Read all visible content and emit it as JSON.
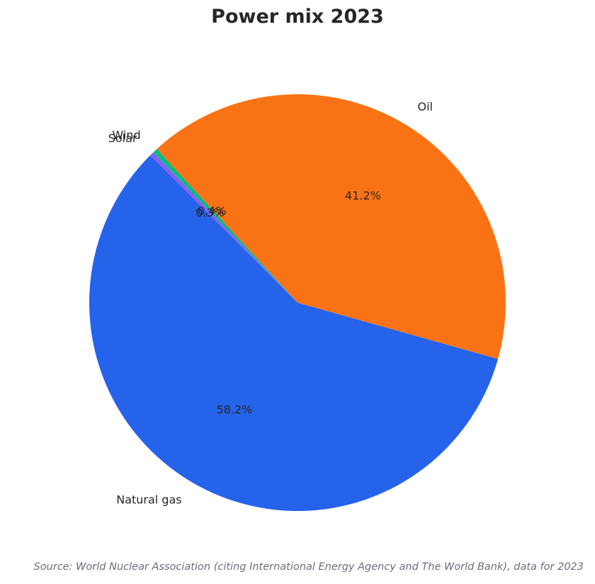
{
  "chart_data": {
    "type": "pie",
    "title": "Power mix 2023",
    "slices": [
      {
        "label": "Natural gas",
        "value": 58.2,
        "pct_label": "58.2%",
        "color": "#2563eb"
      },
      {
        "label": "Oil",
        "value": 41.2,
        "pct_label": "41.2%",
        "color": "#f97316"
      },
      {
        "label": "Wind",
        "value": 0.4,
        "pct_label": "0.4%",
        "color": "#10b981"
      },
      {
        "label": "Solar",
        "value": 0.3,
        "pct_label": "0.3%",
        "color": "#8b5cf6"
      }
    ],
    "start_angle_deg": 135,
    "direction": "counterclockwise",
    "legend": "none"
  },
  "source": "Source: World Nuclear Association (citing International Energy Agency and The World Bank), data for 2023"
}
